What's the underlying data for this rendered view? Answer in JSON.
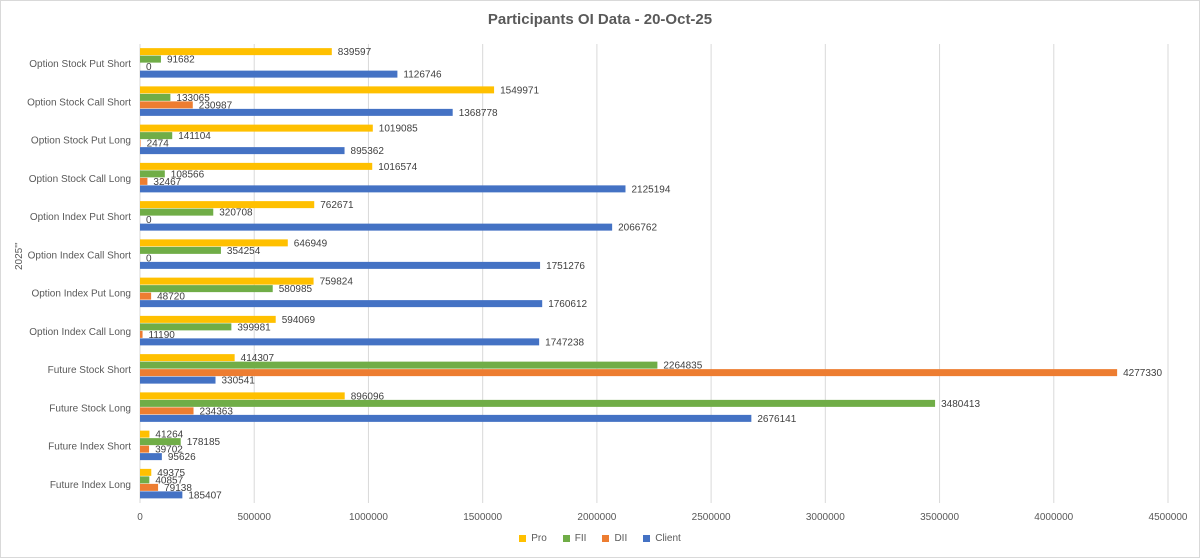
{
  "chart_data": {
    "type": "bar",
    "orientation": "horizontal",
    "title": "Participants OI Data - 20-Oct-25",
    "ylabel": "2025\"'",
    "xlim": [
      0,
      4500000
    ],
    "xticks": [
      "0",
      "500000",
      "1000000",
      "1500000",
      "2000000",
      "2500000",
      "3000000",
      "3500000",
      "4000000",
      "4500000"
    ],
    "grid": "vertical",
    "legend_position": "bottom",
    "categories": [
      "Future Index Long",
      "Future Index Short",
      "Future Stock Long",
      "Future Stock Short",
      "Option Index Call Long",
      "Option Index Put Long",
      "Option Index Call Short",
      "Option Index Put Short",
      "Option Stock Call Long",
      "Option Stock Put Long",
      "Option Stock Call Short",
      "Option Stock Put Short"
    ],
    "series": [
      {
        "name": "Pro",
        "color": "#ffc000",
        "values": [
          49375,
          41264,
          896096,
          414307,
          594069,
          759824,
          646949,
          762671,
          1016574,
          1019085,
          1549971,
          839597
        ]
      },
      {
        "name": "FII",
        "color": "#70ad47",
        "values": [
          40857,
          178185,
          3480413,
          2264835,
          399981,
          580985,
          354254,
          320708,
          108566,
          141104,
          133065,
          91682
        ]
      },
      {
        "name": "DII",
        "color": "#ed7d31",
        "values": [
          79138,
          39702,
          234363,
          4277330,
          11190,
          48720,
          0,
          0,
          32467,
          2474,
          230987,
          0
        ]
      },
      {
        "name": "Client",
        "color": "#4472c4",
        "values": [
          185407,
          95626,
          2676141,
          330541,
          1747238,
          1760612,
          1751276,
          2066762,
          2125194,
          895362,
          1368778,
          1126746
        ]
      }
    ]
  }
}
